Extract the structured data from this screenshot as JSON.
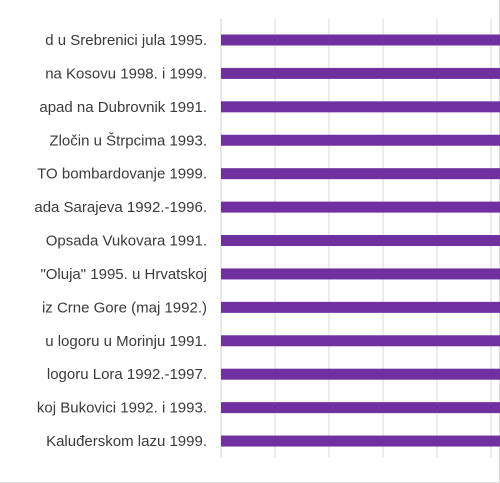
{
  "chart_data": {
    "type": "bar",
    "orientation": "horizontal",
    "categories": [
      "d u Srebrenici jula 1995.",
      "na Kosovu 1998. i 1999.",
      "apad na Dubrovnik 1991.",
      "Zločin u Štrpcima 1993.",
      "TO bombardovanje 1999.",
      "ada Sarajeva 1992.-1996.",
      "Opsada Vukovara 1991.",
      "\"Oluja\" 1995. u Hrvatskoj",
      "iz Crne Gore (maj 1992.)",
      "u logoru u Morinju 1991.",
      "logoru Lora 1992.-1997.",
      "koj Bukovici 1992. i 1993.",
      "Kaluđerskom lazu 1999."
    ],
    "series": [
      {
        "values": [
          5,
          5,
          5,
          5,
          5,
          5,
          5,
          5,
          5,
          5,
          5,
          5,
          5
        ]
      }
    ],
    "xlim": [
      0,
      5
    ],
    "grid": true,
    "bar_color": "#7030a0",
    "grid_color": "#d9d9d9"
  }
}
